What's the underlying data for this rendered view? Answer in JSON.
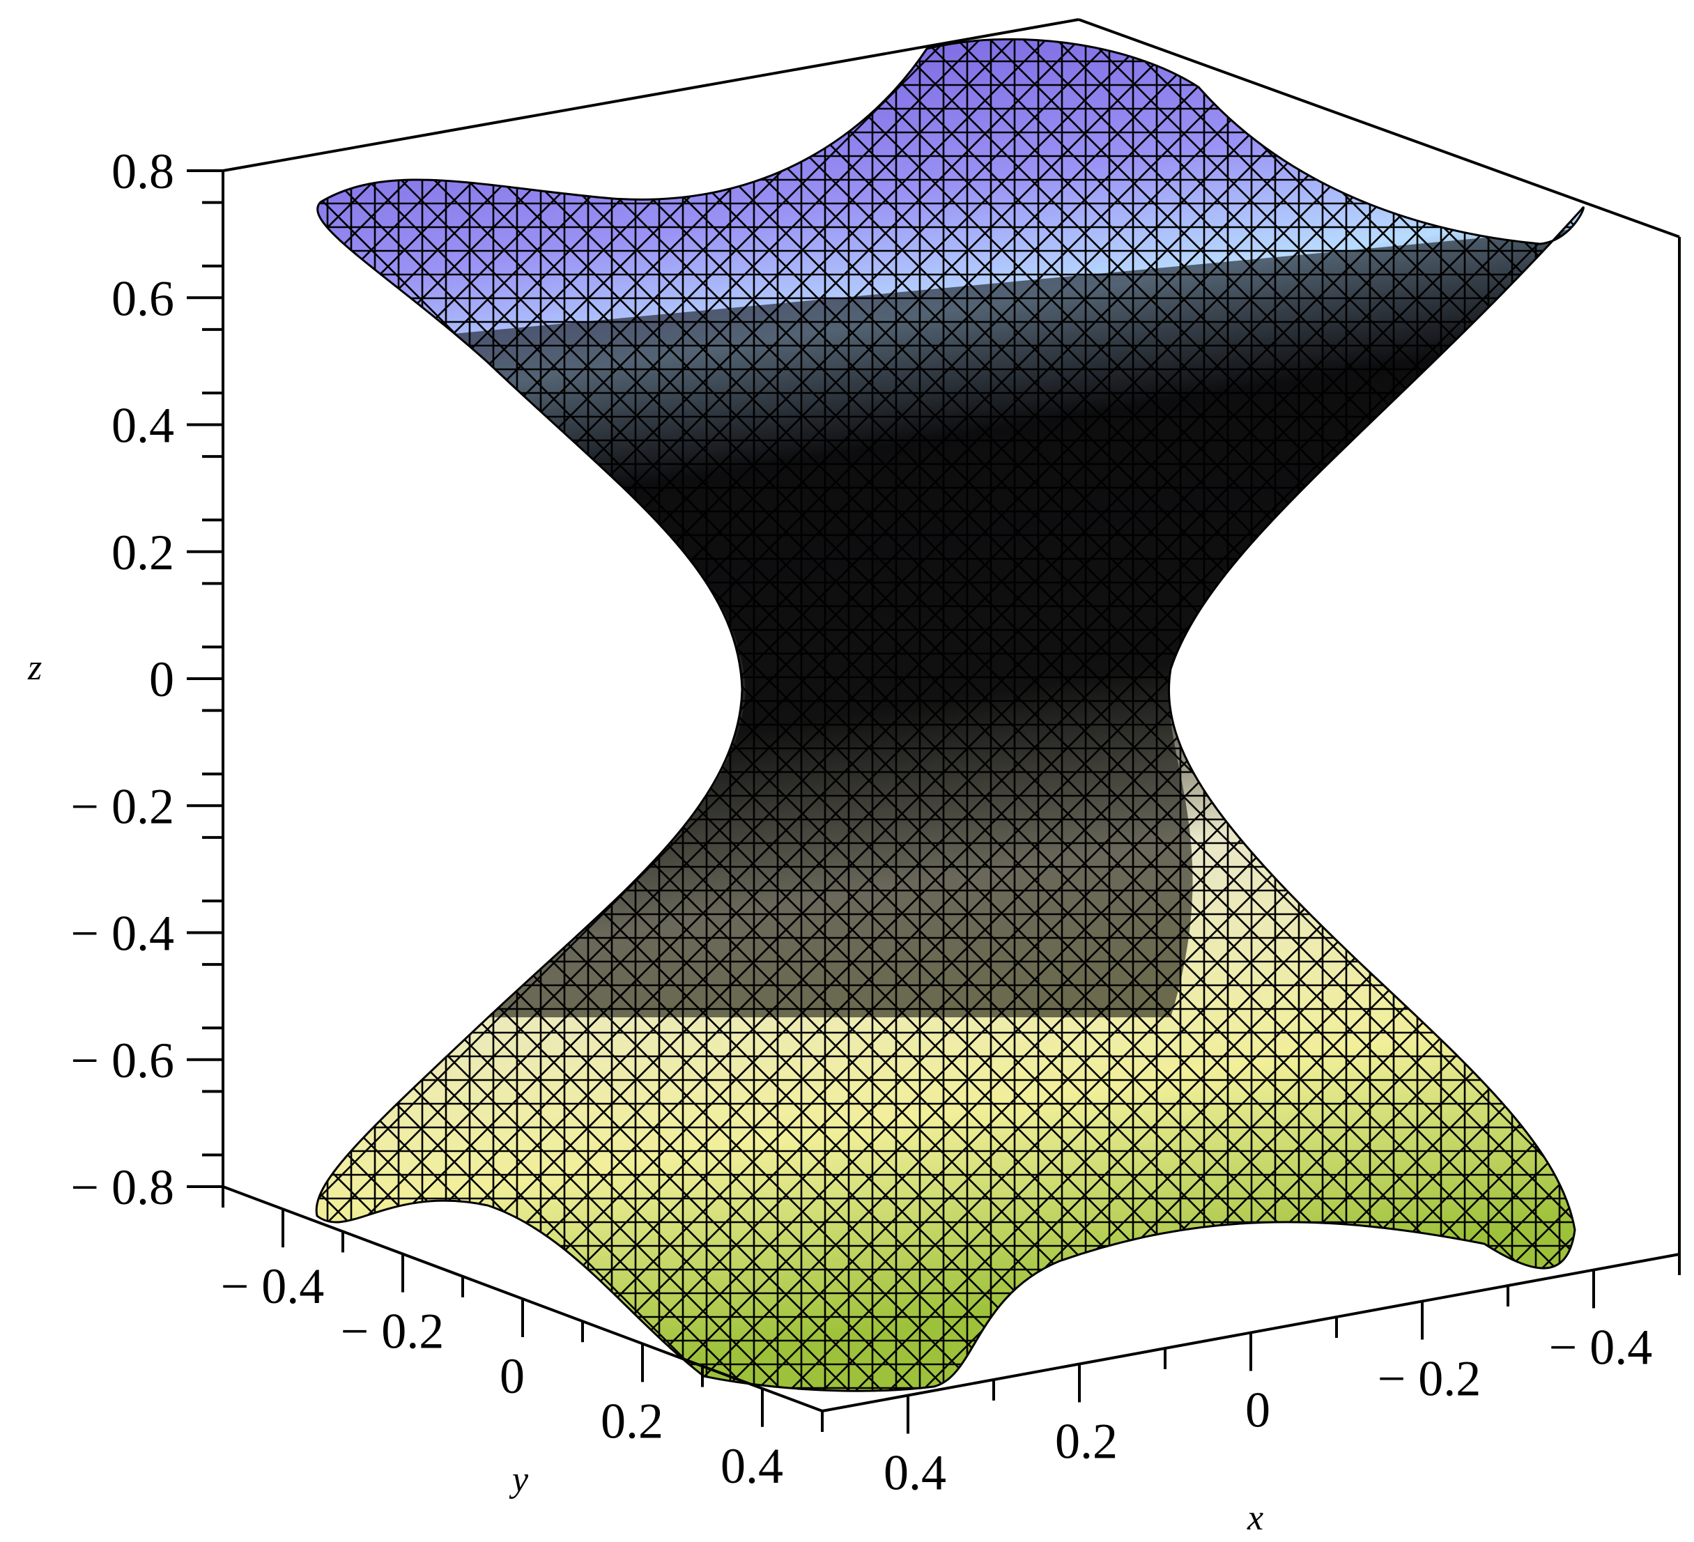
{
  "chart_data": {
    "type": "surface3d",
    "surface": "hyperboloid of one sheet with crossed-diagonal triangle mesh and purple-to-yellow shading",
    "x_range": [
      -0.5,
      0.5
    ],
    "y_range": [
      -0.5,
      0.5
    ],
    "z_range": [
      -0.8,
      0.8
    ],
    "throat_radius": 0.25,
    "colors": {
      "top": "#7a6cf0",
      "top_light": "#bfe4ff",
      "middle": "#2b2b2b",
      "bottom_light": "#f8f7a6",
      "bottom": "#9bc53d",
      "mesh": "#000000"
    },
    "axes": {
      "x": {
        "label": "x",
        "ticks": [
          "0.4",
          "0.2",
          "0",
          "− 0.2",
          "− 0.4"
        ]
      },
      "y": {
        "label": "y",
        "ticks": [
          "− 0.4",
          "− 0.2",
          "0",
          "0.2",
          "0.4"
        ]
      },
      "z": {
        "label": "z",
        "ticks": [
          "0.8",
          "0.6",
          "0.4",
          "0.2",
          "0",
          "− 0.2",
          "− 0.4",
          "− 0.6",
          "− 0.8"
        ]
      }
    }
  }
}
